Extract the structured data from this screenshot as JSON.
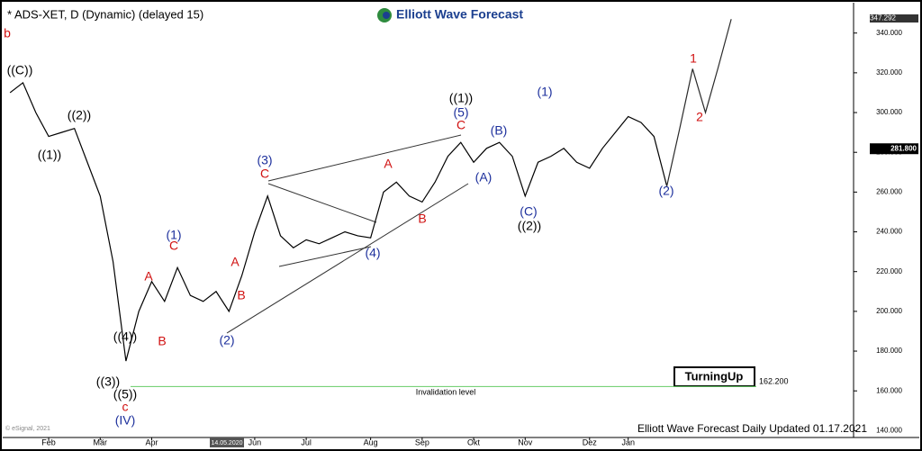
{
  "chart_data": {
    "type": "line",
    "title": "* ADS-XET, D (Dynamic) (delayed 15)",
    "logo": "Elliott Wave Forecast",
    "footer": "Elliott Wave Forecast Daily Updated 01.17.2021",
    "copyright": "© eSignal, 2021",
    "date_marker": "14.05.2020",
    "badge": "TurningUp",
    "categories": [
      null,
      null,
      null,
      "Feb",
      null,
      null,
      null,
      "Mär",
      null,
      null,
      null,
      "Apr",
      null,
      null,
      null,
      null,
      null,
      null,
      null,
      "Jun",
      null,
      null,
      null,
      "Jul",
      null,
      null,
      null,
      null,
      "Aug",
      null,
      null,
      null,
      "Sep",
      null,
      null,
      null,
      "Okt",
      null,
      null,
      null,
      "Nov",
      null,
      null,
      null,
      null,
      "Dez",
      null,
      null,
      "Jan",
      null,
      null,
      null,
      null,
      null,
      null,
      null,
      null,
      null,
      null,
      null,
      null,
      null,
      null,
      null,
      null,
      null
    ],
    "series": [
      {
        "color": "#000000",
        "values": [
          310,
          315,
          300,
          288,
          290,
          292,
          275,
          258,
          225,
          175,
          200,
          215,
          205,
          222,
          208,
          205,
          210,
          200,
          218,
          240,
          258,
          238,
          232,
          236,
          234,
          237,
          240,
          238,
          237,
          260,
          265,
          258,
          255,
          265,
          278,
          285,
          275,
          282,
          285,
          278,
          258,
          275,
          278,
          282,
          275,
          272,
          282,
          290,
          298,
          295,
          288,
          263,
          null,
          null,
          null,
          null,
          null,
          null,
          null,
          null,
          null,
          null,
          null,
          null,
          null,
          null
        ]
      },
      {
        "color": "#2a2a2a",
        "values": [
          null,
          null,
          null,
          null,
          null,
          null,
          null,
          null,
          null,
          null,
          null,
          null,
          null,
          null,
          null,
          null,
          null,
          null,
          null,
          null,
          null,
          null,
          null,
          null,
          null,
          null,
          null,
          null,
          null,
          null,
          null,
          null,
          null,
          null,
          null,
          null,
          null,
          null,
          null,
          null,
          null,
          null,
          null,
          null,
          null,
          null,
          null,
          null,
          null,
          null,
          null,
          263,
          292,
          322,
          300,
          323,
          347,
          null,
          null,
          null,
          null,
          null,
          null,
          null,
          null,
          null
        ]
      }
    ],
    "ylim": [
      137,
      353
    ],
    "yticks": [
      {
        "value": 140,
        "label": "140.000"
      },
      {
        "value": 160,
        "label": "160.000"
      },
      {
        "value": 180,
        "label": "180.000"
      },
      {
        "value": 200,
        "label": "200.000"
      },
      {
        "value": 220,
        "label": "220.000"
      },
      {
        "value": 240,
        "label": "240.000"
      },
      {
        "value": 260,
        "label": "260.000"
      },
      {
        "value": 280,
        "label": "280.000"
      },
      {
        "value": 300,
        "label": "300.000"
      },
      {
        "value": 320,
        "label": "320.000"
      },
      {
        "value": 340,
        "label": "340.000"
      }
    ],
    "last_price": {
      "value": 281.8,
      "label": "281.800"
    },
    "high": {
      "value": 347.292,
      "label": "347.292"
    },
    "invalidation": {
      "value": 162.2,
      "label": "162.200",
      "text": "Invalidation level",
      "color": "#66cc66"
    },
    "annotations": [
      {
        "text": "b",
        "color": "#d01010"
      },
      {
        "text": "((C))",
        "color": "#000000"
      },
      {
        "text": "((1))",
        "color": "#000000"
      },
      {
        "text": "((2))",
        "color": "#000000"
      },
      {
        "text": "((4))",
        "color": "#000000"
      },
      {
        "text": "((3))",
        "color": "#000000"
      },
      {
        "text": "((5))",
        "color": "#000000"
      },
      {
        "text": "c",
        "color": "#d01010"
      },
      {
        "text": "(IV)",
        "color": "#1c2f9c"
      },
      {
        "text": "A",
        "color": "#d01010"
      },
      {
        "text": "B",
        "color": "#d01010"
      },
      {
        "text": "(1)",
        "color": "#1c2f9c"
      },
      {
        "text": "C",
        "color": "#d01010"
      },
      {
        "text": "A",
        "color": "#d01010"
      },
      {
        "text": "B",
        "color": "#d01010"
      },
      {
        "text": "(2)",
        "color": "#1c2f9c"
      },
      {
        "text": "(3)",
        "color": "#1c2f9c"
      },
      {
        "text": "C",
        "color": "#d01010"
      },
      {
        "text": "A",
        "color": "#d01010"
      },
      {
        "text": "B",
        "color": "#d01010"
      },
      {
        "text": "(4)",
        "color": "#1c2f9c"
      },
      {
        "text": "((1))",
        "color": "#000000"
      },
      {
        "text": "(5)",
        "color": "#1c2f9c"
      },
      {
        "text": "C",
        "color": "#d01010"
      },
      {
        "text": "(B)",
        "color": "#1c2f9c"
      },
      {
        "text": "(A)",
        "color": "#1c2f9c"
      },
      {
        "text": "(1)",
        "color": "#1c2f9c"
      },
      {
        "text": "(C)",
        "color": "#1c2f9c"
      },
      {
        "text": "((2))",
        "color": "#000000"
      },
      {
        "text": "(2)",
        "color": "#1c2f9c"
      },
      {
        "text": "1",
        "color": "#d01010"
      },
      {
        "text": "2",
        "color": "#d01010"
      }
    ]
  }
}
